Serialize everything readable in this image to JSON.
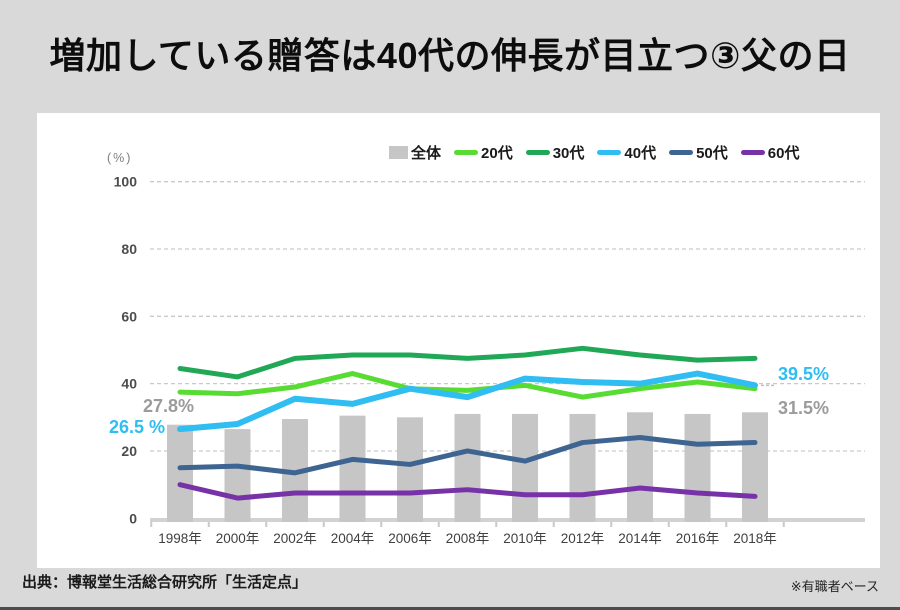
{
  "page": {
    "title": "増加している贈答は40代の伸長が目立つ③父の日",
    "footer_source": "出典：博報堂生活総合研究所「生活定点」",
    "footer_note": "※有職者ベース"
  },
  "colors": {
    "background": "#d9d9d9",
    "panel": "#ffffff",
    "grid": "#c9c9c9",
    "axis_line": "#d2d2d2",
    "axis_text": "#4d4d4d",
    "x_text": "#404040",
    "gray_label": "#9b9b9b",
    "cyan_label": "#2fbdf2"
  },
  "chart_data": {
    "type": "bar+line",
    "title": "",
    "y_axis_unit_label": "(%)",
    "ylim": [
      0,
      100
    ],
    "yticks": [
      0,
      20,
      40,
      60,
      80,
      100
    ],
    "grid": "dashed-horizontal",
    "legend_position": "top-center",
    "categories": [
      "1998年",
      "2000年",
      "2002年",
      "2004年",
      "2006年",
      "2008年",
      "2010年",
      "2012年",
      "2014年",
      "2016年",
      "2018年"
    ],
    "bar_series": {
      "name": "全体",
      "color": "#c6c6c6",
      "values": [
        27.8,
        26.5,
        29.5,
        30.5,
        30,
        31,
        31,
        31,
        31.5,
        31,
        31.5
      ]
    },
    "line_series": [
      {
        "name": "20代",
        "color": "#58dc33",
        "values": [
          37.5,
          37,
          39,
          43,
          38.5,
          38,
          39.5,
          36,
          38.5,
          40.5,
          38.5
        ]
      },
      {
        "name": "30代",
        "color": "#21a857",
        "values": [
          44.5,
          42,
          47.5,
          48.5,
          48.5,
          47.5,
          48.5,
          50.5,
          48.5,
          47,
          47.5
        ]
      },
      {
        "name": "40代",
        "color": "#2fbdf2",
        "values": [
          26.5,
          28,
          35.5,
          34,
          38.5,
          36,
          41.5,
          40.5,
          40,
          43,
          39.5
        ]
      },
      {
        "name": "50代",
        "color": "#3e6491",
        "values": [
          15,
          15.5,
          13.5,
          17.5,
          16,
          20,
          17,
          22.5,
          24,
          22,
          22.5
        ]
      },
      {
        "name": "60代",
        "color": "#7832a8",
        "values": [
          10,
          6,
          7.5,
          7.5,
          7.5,
          8.5,
          7,
          7,
          9,
          7.5,
          6.5
        ]
      }
    ],
    "annotations": [
      {
        "text": "27.8%",
        "value": 27.8,
        "series": "全体",
        "category": "1998年",
        "color": "#9b9b9b",
        "connector": false
      },
      {
        "text": "26.5 %",
        "value": 26.5,
        "series": "40代",
        "category": "1998年",
        "color": "#2fbdf2",
        "connector": false
      },
      {
        "text": "39.5%",
        "value": 39.5,
        "series": "40代",
        "category": "2018年",
        "color": "#2fbdf2",
        "connector": true
      },
      {
        "text": "31.5%",
        "value": 31.5,
        "series": "全体",
        "category": "2018年",
        "color": "#9b9b9b",
        "connector": false
      }
    ]
  }
}
